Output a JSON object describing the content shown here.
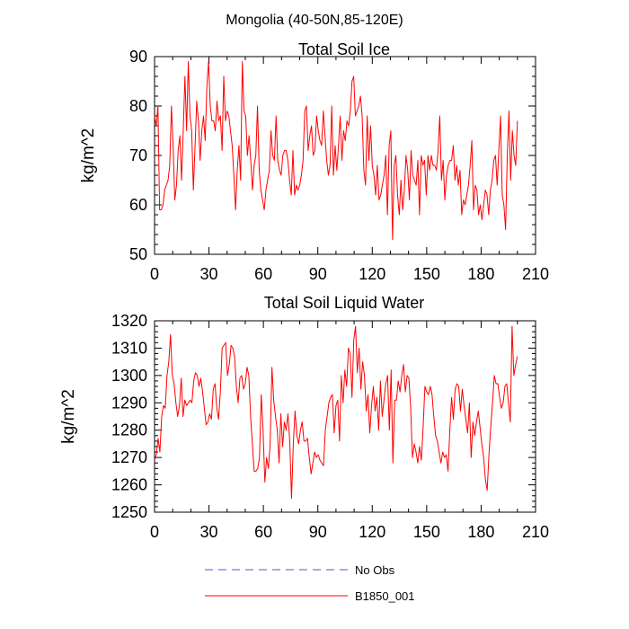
{
  "figure_title": "Mongolia (40-50N,85-120E)",
  "legend": [
    {
      "label": "No Obs",
      "color": "#5555cc",
      "style": "dashed"
    },
    {
      "label": "B1850_001",
      "color": "#ff0000",
      "style": "solid"
    }
  ],
  "chart_data": [
    {
      "type": "line",
      "title": "Total Soil Ice",
      "xlabel": "",
      "ylabel": "kg/m^2",
      "xlim": [
        0,
        210
      ],
      "ylim": [
        50,
        90
      ],
      "xticks": [
        0,
        30,
        60,
        90,
        120,
        150,
        180,
        210
      ],
      "yticks": [
        50,
        60,
        70,
        80,
        90
      ],
      "x_minor_step": 10,
      "y_minor_step": 2,
      "series": [
        {
          "name": "B1850_001",
          "color": "#ff0000",
          "values": [
            78,
            76,
            80,
            59,
            59,
            60,
            63,
            64,
            65,
            68,
            80,
            72,
            61,
            64,
            71,
            74,
            65,
            75,
            86,
            75,
            89,
            78,
            75,
            63,
            72,
            81,
            77,
            69,
            75,
            78,
            73,
            84,
            89,
            80,
            77,
            77,
            75,
            81,
            77,
            78,
            71,
            86,
            77,
            79,
            78,
            75,
            72,
            66,
            59,
            67,
            72,
            65,
            89,
            79,
            78,
            70,
            74,
            69,
            63,
            68,
            70,
            80,
            67,
            63,
            61,
            59,
            63,
            65,
            67,
            75,
            70,
            69,
            78,
            69,
            67,
            66,
            70,
            71,
            71,
            69,
            65,
            62,
            71,
            62,
            64,
            63,
            64,
            66,
            69,
            79,
            80,
            71,
            74,
            76,
            70,
            71,
            78,
            75,
            73,
            72,
            79,
            74,
            69,
            66,
            68,
            80,
            66,
            72,
            67,
            72,
            78,
            69,
            75,
            73,
            77,
            76,
            79,
            85,
            86,
            78,
            79,
            80,
            82,
            78,
            67,
            64,
            78,
            69,
            76,
            68,
            66,
            62,
            68,
            61,
            62,
            64,
            66,
            70,
            58,
            72,
            75,
            53,
            68,
            70,
            62,
            58,
            65,
            59,
            63,
            70,
            67,
            61,
            71,
            66,
            65,
            64,
            69,
            58,
            70,
            68,
            69,
            62,
            70,
            67,
            70,
            68,
            68,
            67,
            71,
            78,
            65,
            69,
            61,
            66,
            68,
            69,
            69,
            72,
            65,
            68,
            64,
            67,
            58,
            61,
            60,
            62,
            64,
            68,
            73,
            59,
            64,
            63,
            58,
            60,
            57,
            60,
            63,
            62,
            58,
            63,
            65,
            69,
            70,
            64,
            71,
            78,
            62,
            60,
            55,
            70,
            79,
            65,
            75,
            70,
            68,
            77
          ]
        }
      ]
    },
    {
      "type": "line",
      "title": "Total Soil Liquid Water",
      "xlabel": "",
      "ylabel": "kg/m^2",
      "xlim": [
        0,
        210
      ],
      "ylim": [
        1250,
        1320
      ],
      "xticks": [
        0,
        30,
        60,
        90,
        120,
        150,
        180,
        210
      ],
      "yticks": [
        1250,
        1260,
        1270,
        1280,
        1290,
        1300,
        1310,
        1320
      ],
      "x_minor_step": 10,
      "y_minor_step": 2,
      "series": [
        {
          "name": "B1850_001",
          "color": "#ff0000",
          "values": [
            1269,
            1271,
            1277,
            1272,
            1285,
            1289,
            1288,
            1300,
            1305,
            1315,
            1300,
            1297,
            1290,
            1285,
            1289,
            1299,
            1285,
            1291,
            1289,
            1290,
            1291,
            1290,
            1298,
            1301,
            1300,
            1296,
            1299,
            1294,
            1288,
            1282,
            1283,
            1286,
            1284,
            1295,
            1297,
            1288,
            1284,
            1294,
            1310,
            1311,
            1312,
            1300,
            1304,
            1311,
            1310,
            1307,
            1296,
            1290,
            1299,
            1300,
            1295,
            1297,
            1303,
            1300,
            1285,
            1275,
            1265,
            1265,
            1266,
            1270,
            1293,
            1280,
            1261,
            1270,
            1266,
            1275,
            1303,
            1291,
            1285,
            1280,
            1268,
            1286,
            1274,
            1283,
            1280,
            1286,
            1276,
            1255,
            1275,
            1287,
            1278,
            1275,
            1280,
            1283,
            1276,
            1276,
            1277,
            1270,
            1264,
            1268,
            1272,
            1270,
            1271,
            1269,
            1268,
            1267,
            1280,
            1285,
            1290,
            1292,
            1293,
            1279,
            1289,
            1291,
            1276,
            1300,
            1290,
            1302,
            1296,
            1310,
            1308,
            1292,
            1313,
            1318,
            1301,
            1310,
            1295,
            1305,
            1300,
            1287,
            1293,
            1279,
            1289,
            1296,
            1287,
            1292,
            1280,
            1298,
            1285,
            1291,
            1297,
            1300,
            1280,
            1302,
            1268,
            1291,
            1291,
            1298,
            1294,
            1300,
            1304,
            1294,
            1300,
            1299,
            1288,
            1270,
            1275,
            1272,
            1268,
            1274,
            1269,
            1281,
            1296,
            1294,
            1293,
            1296,
            1293,
            1285,
            1278,
            1276,
            1272,
            1268,
            1272,
            1270,
            1271,
            1265,
            1280,
            1292,
            1284,
            1295,
            1297,
            1296,
            1287,
            1295,
            1289,
            1284,
            1279,
            1290,
            1270,
            1283,
            1278,
            1283,
            1287,
            1281,
            1275,
            1270,
            1262,
            1258,
            1271,
            1281,
            1290,
            1300,
            1297,
            1297,
            1292,
            1288,
            1290,
            1296,
            1297,
            1290,
            1283,
            1318,
            1300,
            1304,
            1307
          ]
        }
      ]
    }
  ]
}
